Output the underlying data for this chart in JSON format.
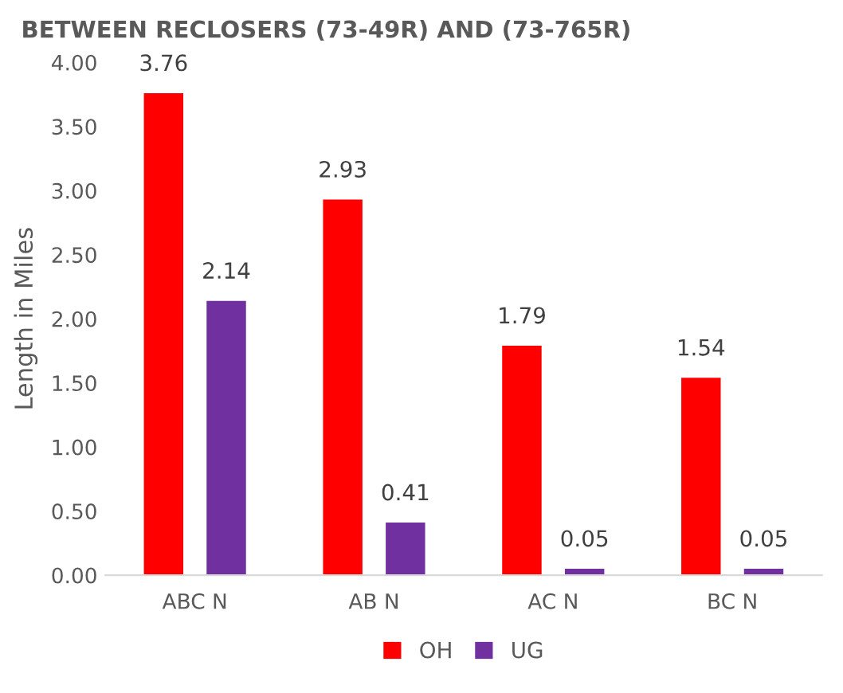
{
  "chart_data": {
    "type": "bar",
    "title": "BETWEEN RECLOSERS (73-49R) AND (73-765R)",
    "ylabel": "Length in Miles",
    "categories": [
      "ABC N",
      "AB N",
      "AC N",
      "BC N"
    ],
    "series": [
      {
        "name": "OH",
        "color": "#ff0000",
        "values": [
          3.76,
          2.93,
          1.79,
          1.54
        ]
      },
      {
        "name": "UG",
        "color": "#7030a0",
        "values": [
          2.14,
          0.41,
          0.05,
          0.05
        ]
      }
    ],
    "ylim": [
      0,
      4
    ],
    "yticks": [
      {
        "value": 0,
        "label": "0.00"
      },
      {
        "value": 0.5,
        "label": "0.50"
      },
      {
        "value": 1,
        "label": "1.00"
      },
      {
        "value": 1.5,
        "label": "1.50"
      },
      {
        "value": 2,
        "label": "2.00"
      },
      {
        "value": 2.5,
        "label": "2.50"
      },
      {
        "value": 3,
        "label": "3.00"
      },
      {
        "value": 3.5,
        "label": "3.50"
      },
      {
        "value": 4,
        "label": "4.00"
      }
    ],
    "data_labels": true,
    "legend": "bottom",
    "grid": false
  }
}
